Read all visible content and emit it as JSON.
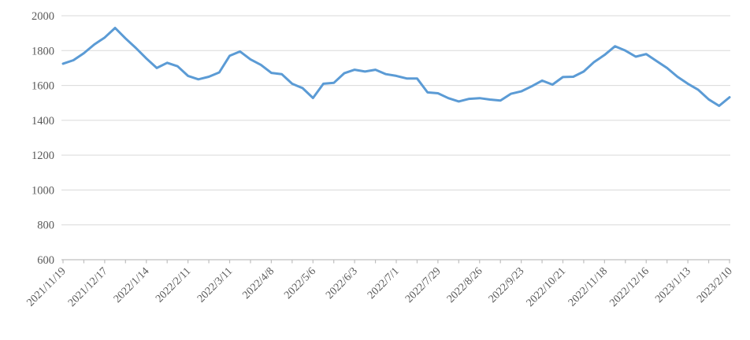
{
  "chart_data": {
    "type": "line",
    "title": "",
    "xlabel": "",
    "ylabel": "",
    "legend": "none",
    "grid": "horizontal",
    "ylim": [
      600,
      2000
    ],
    "yticks": [
      600,
      800,
      1000,
      1200,
      1400,
      1600,
      1800,
      2000
    ],
    "x_tick_every": 2,
    "x_label_every": 4,
    "x": [
      "2021/11/19",
      "2021/11/26",
      "2021/12/3",
      "2021/12/10",
      "2021/12/17",
      "2021/12/24",
      "2021/12/31",
      "2022/1/7",
      "2022/1/14",
      "2022/1/21",
      "2022/1/28",
      "2022/2/4",
      "2022/2/11",
      "2022/2/18",
      "2022/2/25",
      "2022/3/4",
      "2022/3/11",
      "2022/3/18",
      "2022/3/25",
      "2022/4/1",
      "2022/4/8",
      "2022/4/15",
      "2022/4/22",
      "2022/4/29",
      "2022/5/6",
      "2022/5/13",
      "2022/5/20",
      "2022/5/27",
      "2022/6/3",
      "2022/6/10",
      "2022/6/17",
      "2022/6/24",
      "2022/7/1",
      "2022/7/8",
      "2022/7/15",
      "2022/7/22",
      "2022/7/29",
      "2022/8/5",
      "2022/8/12",
      "2022/8/19",
      "2022/8/26",
      "2022/9/2",
      "2022/9/9",
      "2022/9/16",
      "2022/9/23",
      "2022/9/30",
      "2022/10/7",
      "2022/10/14",
      "2022/10/21",
      "2022/10/28",
      "2022/11/4",
      "2022/11/11",
      "2022/11/18",
      "2022/11/25",
      "2022/12/2",
      "2022/12/9",
      "2022/12/16",
      "2022/12/23",
      "2022/12/30",
      "2023/1/6",
      "2023/1/13",
      "2023/1/20",
      "2023/1/27",
      "2023/2/3",
      "2023/2/10"
    ],
    "series": [
      {
        "name": "value",
        "values": [
          1725,
          1745,
          1785,
          1835,
          1875,
          1930,
          1870,
          1815,
          1755,
          1700,
          1730,
          1710,
          1655,
          1635,
          1650,
          1675,
          1770,
          1795,
          1750,
          1718,
          1672,
          1665,
          1610,
          1585,
          1528,
          1610,
          1615,
          1670,
          1690,
          1680,
          1690,
          1665,
          1655,
          1640,
          1640,
          1560,
          1555,
          1527,
          1508,
          1523,
          1527,
          1519,
          1513,
          1552,
          1566,
          1595,
          1628,
          1605,
          1648,
          1650,
          1680,
          1735,
          1775,
          1825,
          1800,
          1765,
          1780,
          1740,
          1700,
          1650,
          1610,
          1575,
          1520,
          1483,
          1532
        ]
      }
    ],
    "x_axis_labels_visible": [
      "2021/11/19",
      "2021/12/17",
      "2022/1/14",
      "2022/2/11",
      "2022/3/11",
      "2022/4/8",
      "2022/5/6",
      "2022/6/3",
      "2022/7/1",
      "2022/7/29",
      "2022/8/26",
      "2022/9/23",
      "2022/10/21",
      "2022/11/18",
      "2022/12/16",
      "2023/1/13",
      "2023/2/10"
    ]
  },
  "colors": {
    "line": "#5B9BD5",
    "gridline": "#D9D9D9",
    "axis": "#BFBFBF",
    "tick": "#BFBFBF",
    "label_text": "#595959",
    "background": "#FFFFFF"
  }
}
